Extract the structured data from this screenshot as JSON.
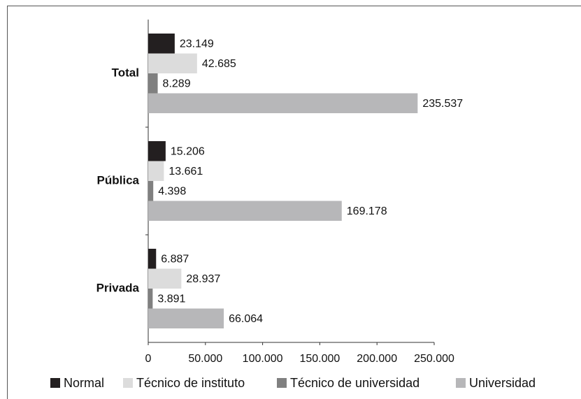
{
  "chart_data": {
    "type": "bar",
    "orientation": "horizontal",
    "categories": [
      "Total",
      "Pública",
      "Privada"
    ],
    "series": [
      {
        "name": "Normal",
        "color": "#231f20",
        "values": [
          23149,
          15206,
          6887
        ],
        "value_labels": [
          "23.149",
          "15.206",
          "6.887"
        ]
      },
      {
        "name": "Técnico de instituto",
        "color": "#dcdcdc",
        "values": [
          42685,
          13661,
          28937
        ],
        "value_labels": [
          "42.685",
          "13.661",
          "28.937"
        ]
      },
      {
        "name": "Técnico de universidad",
        "color": "#808080",
        "values": [
          8289,
          4398,
          3891
        ],
        "value_labels": [
          "8.289",
          "4.398",
          "3.891"
        ]
      },
      {
        "name": "Universidad",
        "color": "#b7b7b9",
        "values": [
          235537,
          169178,
          66064
        ],
        "value_labels": [
          "235.537",
          "169.178",
          "66.064"
        ]
      }
    ],
    "xlim": [
      0,
      250000
    ],
    "xticks": [
      0,
      {
        "value": 50000,
        "label": "50.000"
      },
      {
        "value": 100000,
        "label": "100.000"
      },
      {
        "value": 150000,
        "label": "150.000"
      },
      {
        "value": 200000,
        "label": "200.000"
      },
      {
        "value": 250000,
        "label": "250.000"
      }
    ],
    "legend": "bottom"
  }
}
